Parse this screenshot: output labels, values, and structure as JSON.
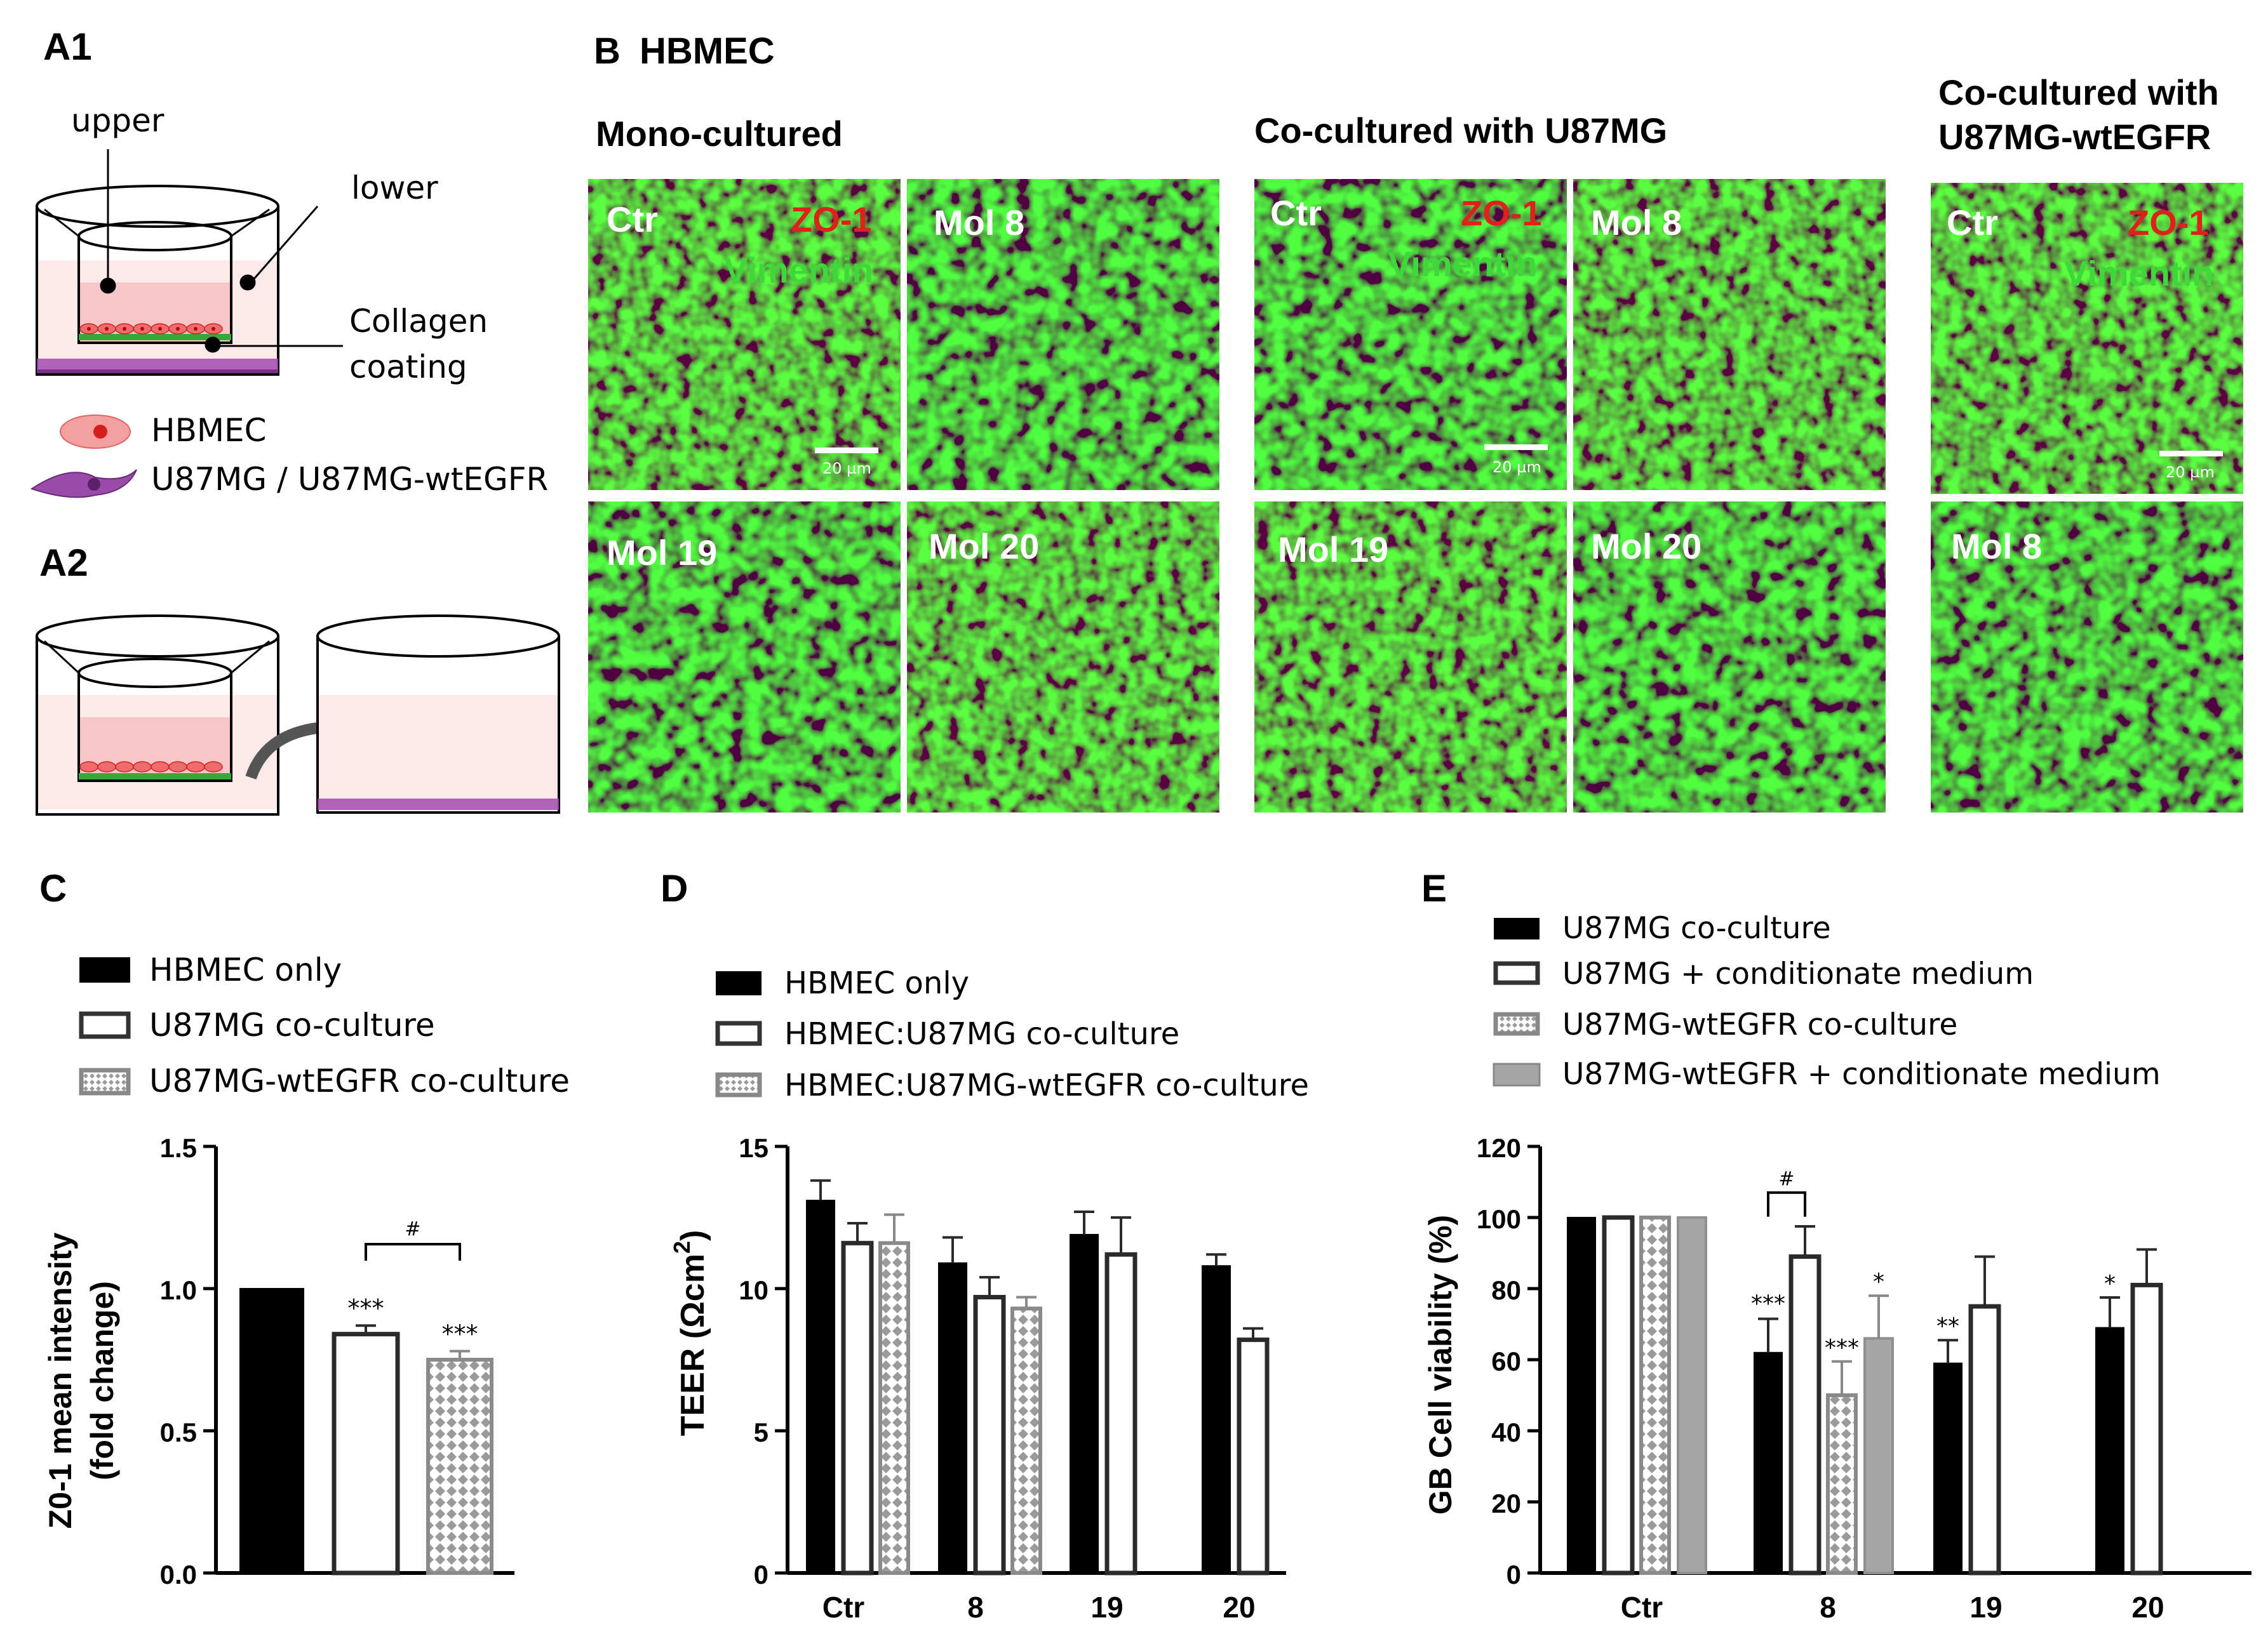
{
  "panels": {
    "A1": "A1",
    "A2": "A2",
    "B": "B",
    "B_title": "HBMEC",
    "C": "C",
    "D": "D",
    "E": "E"
  },
  "schematic": {
    "upper": "upper",
    "lower": "lower",
    "collagen_line1": "Collagen",
    "collagen_line2": "coating",
    "legend_hbmec": "HBMEC",
    "legend_u87": "U87MG / U87MG-wtEGFR"
  },
  "micro": {
    "col_mono": "Mono-cultured",
    "col_u87": "Co-cultured with U87MG",
    "col_wt_line1": "Co-cultured with",
    "col_wt_line2": "U87MG-wtEGFR",
    "ctr": "Ctr",
    "zo1": "ZO-1",
    "vimentin": "Vimentin",
    "scale": "20 µm",
    "mol8": "Mol 8",
    "mol19": "Mol 19",
    "mol20": "Mol 20",
    "colors": {
      "green": "#3fb83a",
      "red": "#e0201a",
      "dark": "#1d2a0d"
    }
  },
  "chart_data": [
    {
      "type": "bar",
      "panel": "C",
      "ylabel_line1": "Z0-1 mean intensity",
      "ylabel_line2": "(fold change)",
      "yticks": [
        "0.0",
        "0.5",
        "1.0",
        "1.5"
      ],
      "ylim": [
        0,
        1.5
      ],
      "series": [
        {
          "name": "HBMEC only",
          "style": "black",
          "values": [
            1.0
          ],
          "errors": [
            0
          ]
        },
        {
          "name": "U87MG co-culture",
          "style": "open",
          "values": [
            0.84
          ],
          "errors": [
            0.03
          ]
        },
        {
          "name": "U87MG-wtEGFR co-culture",
          "style": "pattern",
          "values": [
            0.75
          ],
          "errors": [
            0.03
          ]
        }
      ],
      "annotations": [
        "***",
        "***",
        "#"
      ]
    },
    {
      "type": "bar",
      "panel": "D",
      "ylabel": "TEER (Ωcm",
      "ylabel_sup": "2",
      "ylabel_end": ")",
      "categories": [
        "Ctr",
        "8",
        "19",
        "20"
      ],
      "yticks": [
        "0",
        "5",
        "10",
        "15"
      ],
      "ylim": [
        0,
        15
      ],
      "series": [
        {
          "name": "HBMEC only",
          "style": "black",
          "values": [
            13.1,
            10.9,
            11.9,
            10.8
          ],
          "errors": [
            0.7,
            0.9,
            0.8,
            0.4
          ]
        },
        {
          "name": "HBMEC:U87MG co-culture",
          "style": "open",
          "values": [
            11.6,
            9.7,
            11.2,
            8.2
          ],
          "errors": [
            0.7,
            0.7,
            1.3,
            0.4
          ]
        },
        {
          "name": "HBMEC:U87MG-wtEGFR co-culture",
          "style": "pattern",
          "values": [
            11.6,
            9.3,
            null,
            null
          ],
          "errors": [
            1.0,
            0.4,
            null,
            null
          ]
        }
      ]
    },
    {
      "type": "bar",
      "panel": "E",
      "ylabel": "GB Cell viability (%)",
      "categories": [
        "Ctr",
        "8",
        "19",
        "20"
      ],
      "yticks": [
        "0",
        "20",
        "40",
        "60",
        "80",
        "100",
        "120"
      ],
      "ylim": [
        0,
        120
      ],
      "series": [
        {
          "name": "U87MG co-culture",
          "style": "black",
          "values": [
            100,
            62,
            59,
            69
          ],
          "errors": [
            0,
            9.5,
            6.5,
            8.5
          ]
        },
        {
          "name": "U87MG + conditionate medium",
          "style": "open",
          "values": [
            100,
            89,
            75,
            81
          ],
          "errors": [
            0,
            8.5,
            14,
            10
          ]
        },
        {
          "name": "U87MG-wtEGFR co-culture",
          "style": "pattern",
          "values": [
            100,
            50,
            null,
            null
          ],
          "errors": [
            0,
            9.5,
            null,
            null
          ]
        },
        {
          "name": "U87MG-wtEGFR + conditionate medium",
          "style": "grey",
          "values": [
            100,
            66,
            null,
            null
          ],
          "errors": [
            0,
            12,
            null,
            null
          ]
        }
      ],
      "annotations": [
        "***",
        "#",
        "***",
        "*",
        "**",
        "*"
      ]
    }
  ]
}
